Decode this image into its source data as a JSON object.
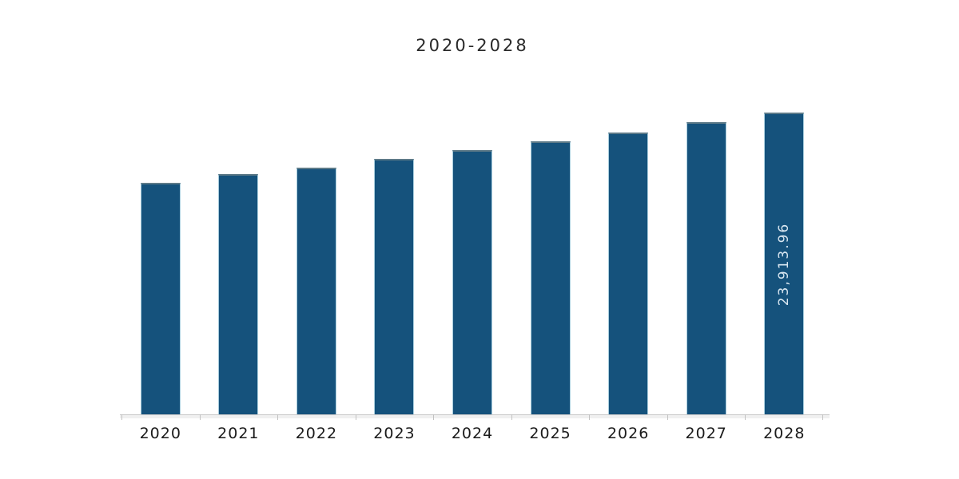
{
  "chart": {
    "colors": {
      "title_color": "#2a2a2a",
      "bar_color": "#15527C",
      "bar_edge": "#a9cede",
      "bar_top_edge": "#5d7a88",
      "value_label_color": "#d8e6f0",
      "axis_line": "#c9c9c9",
      "axis_strip": "#f0f0f0",
      "tick_color": "#c2c2c2",
      "x_label_color": "#1b1b1b"
    }
  },
  "chart_data": {
    "type": "bar",
    "title": "2020-2028",
    "categories": [
      "2020",
      "2021",
      "2022",
      "2023",
      "2024",
      "2025",
      "2026",
      "2027",
      "2028"
    ],
    "values": [
      18350,
      19040,
      19550,
      20240,
      20940,
      21640,
      22330,
      23150,
      23913.96
    ],
    "data_labels": [
      "",
      "",
      "",
      "",
      "",
      "",
      "",
      "",
      "23,913.96"
    ],
    "xlabel": "",
    "ylabel": "",
    "ylim": [
      0,
      23913.96
    ],
    "grid": false,
    "legend": false
  }
}
